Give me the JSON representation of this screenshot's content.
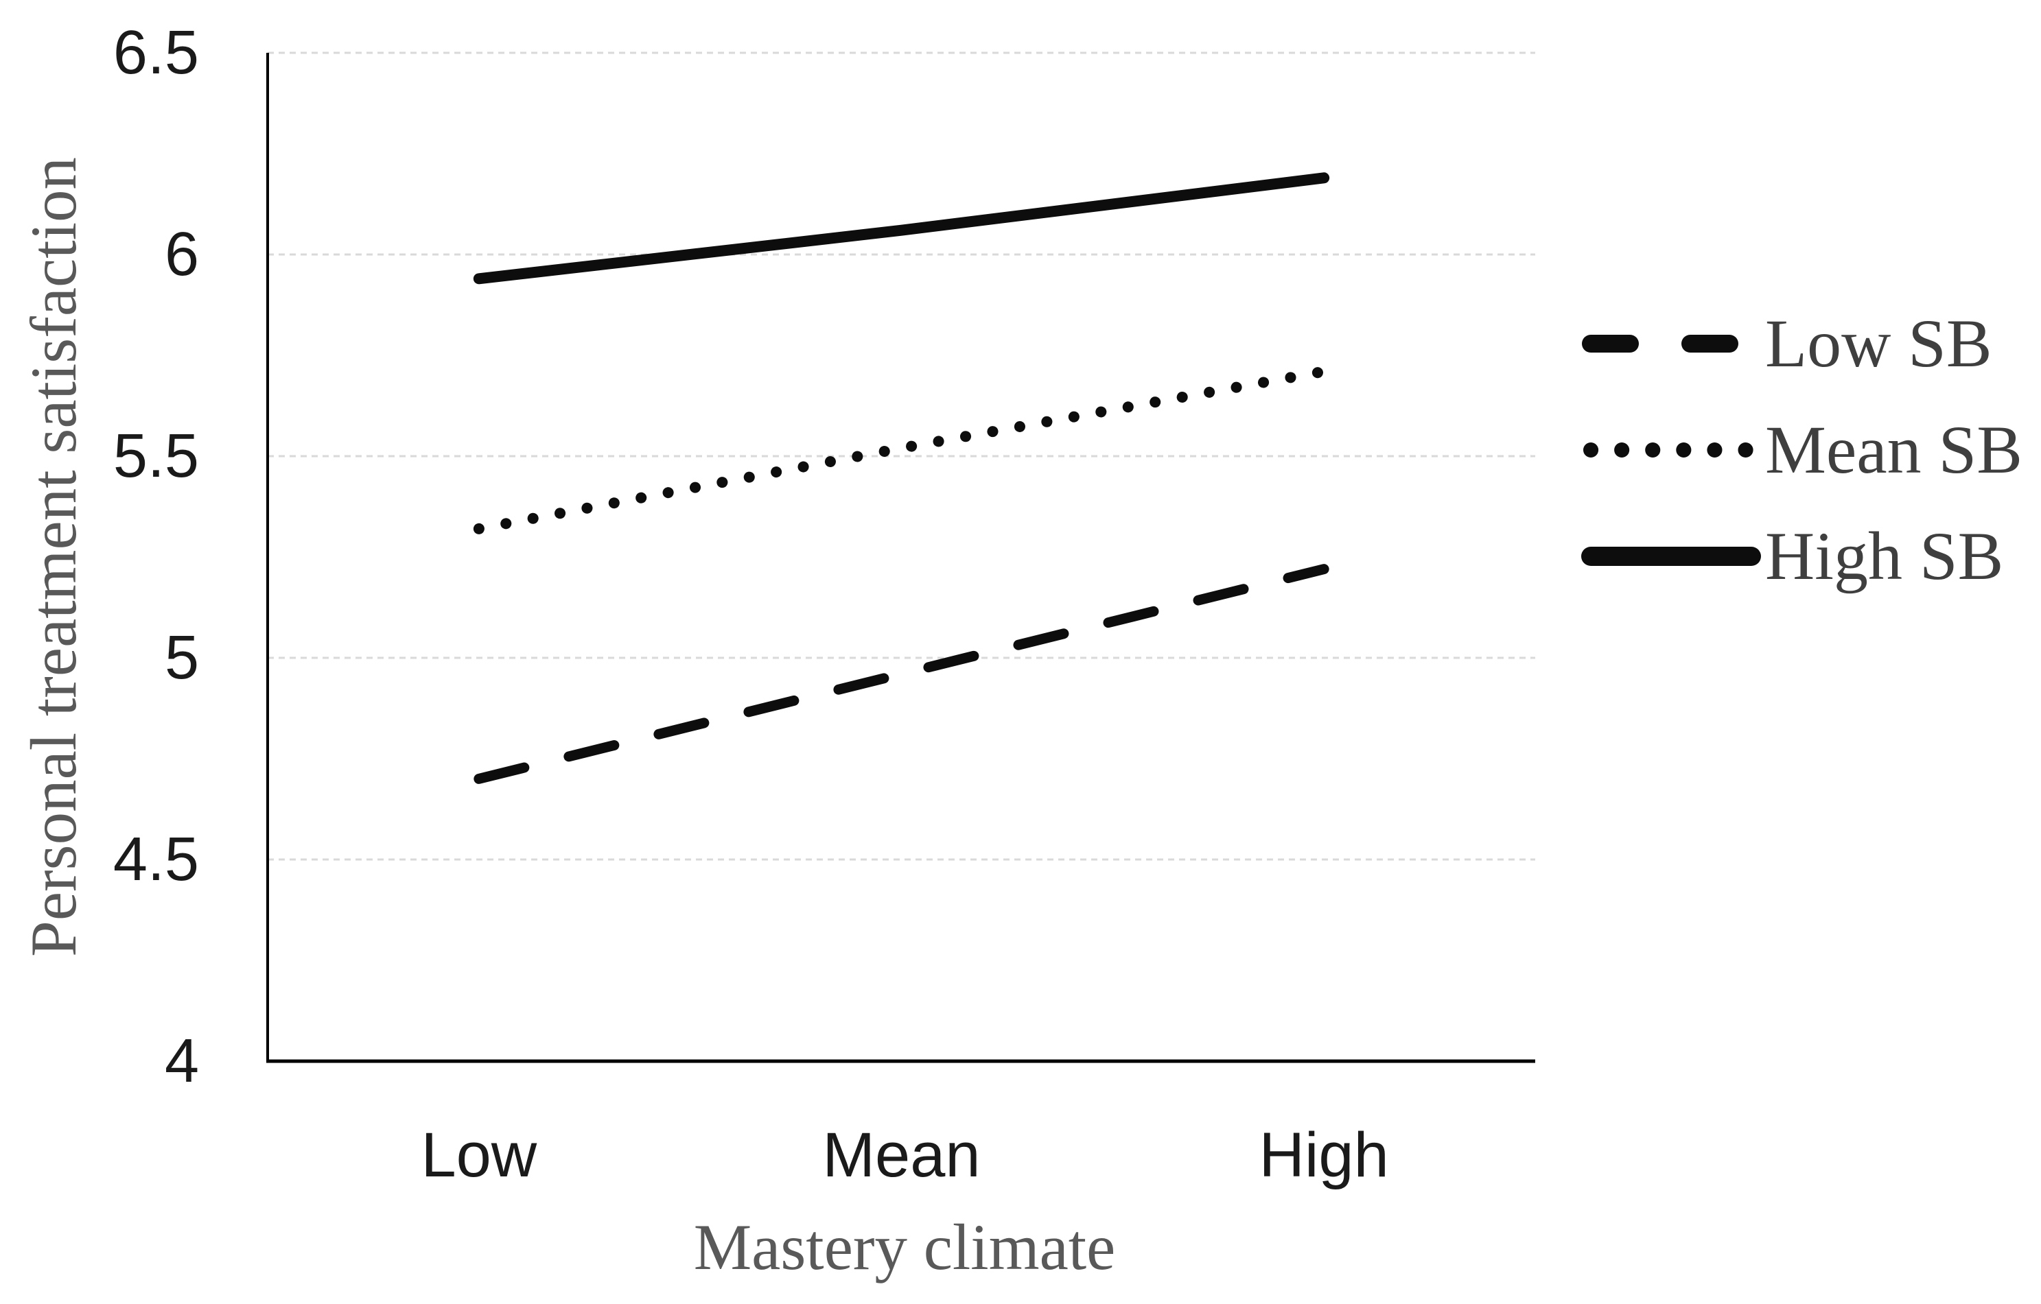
{
  "chart_data": {
    "type": "line",
    "title": "",
    "xlabel": "Mastery climate",
    "ylabel": "Personal treatment satisfaction",
    "categories": [
      "Low",
      "Mean",
      "High"
    ],
    "ylim": [
      4,
      6.5
    ],
    "y_ticks": [
      {
        "label": "6.5",
        "value": 6.5
      },
      {
        "label": "6",
        "value": 6
      },
      {
        "label": "5.5",
        "value": 5.5
      },
      {
        "label": "5",
        "value": 5
      },
      {
        "label": "4.5",
        "value": 4.5
      },
      {
        "label": "4",
        "value": 4
      }
    ],
    "grid": "horizontal",
    "legend_position": "right",
    "series": [
      {
        "name": "Low SB",
        "style": "dashed",
        "values": [
          4.7,
          4.96,
          5.22
        ]
      },
      {
        "name": "Mean SB",
        "style": "dotted",
        "values": [
          5.32,
          5.52,
          5.71
        ]
      },
      {
        "name": "High SB",
        "style": "solid",
        "values": [
          5.94,
          6.06,
          6.19
        ]
      }
    ]
  },
  "colors": {
    "line": "#0d0d0d",
    "grid": "#d9d9d9",
    "axis": "#000000",
    "tick_label": "#1a1a1a",
    "axis_title": "#595959",
    "legend_text": "#3f3f3f",
    "background": "#ffffff"
  }
}
